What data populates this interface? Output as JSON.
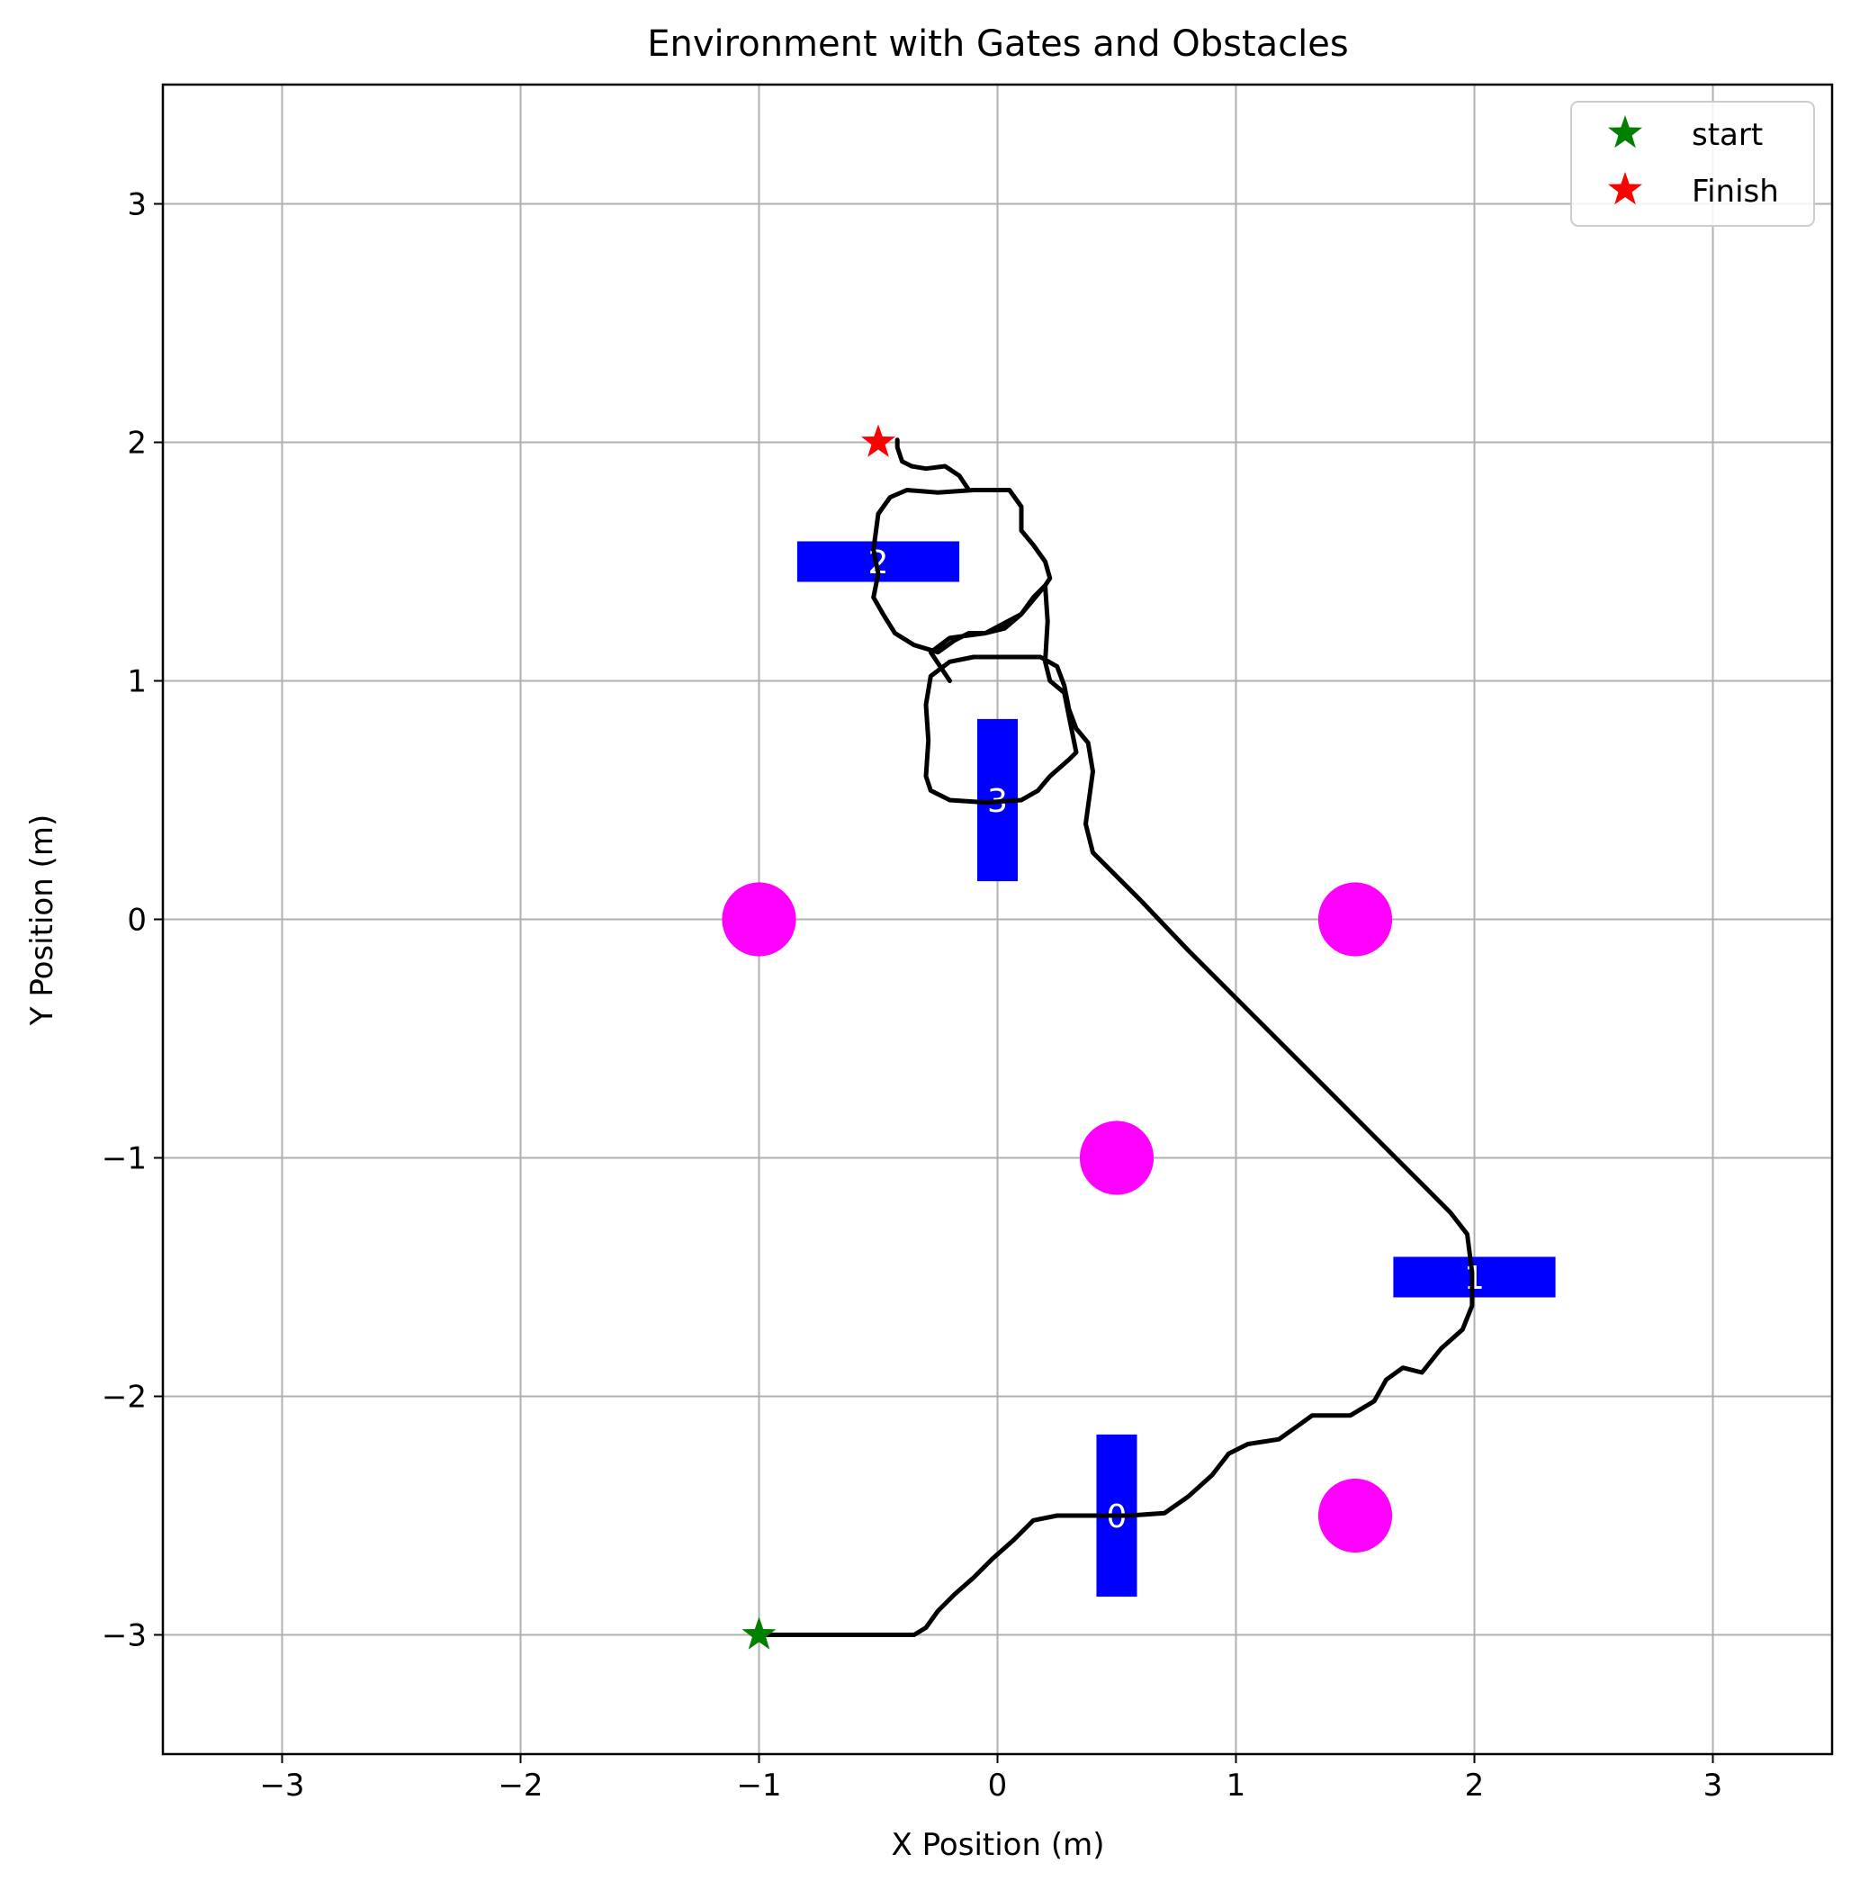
{
  "chart_data": {
    "type": "scatter",
    "title": "Environment with Gates and Obstacles",
    "xlabel": "X Position (m)",
    "ylabel": "Y Position (m)",
    "xlim": [
      -3.5,
      3.5
    ],
    "ylim": [
      -3.5,
      3.5
    ],
    "xticks": [
      -3,
      -2,
      -1,
      0,
      1,
      2,
      3
    ],
    "yticks": [
      -3,
      -2,
      -1,
      0,
      1,
      2,
      3
    ],
    "xtick_labels": [
      "−3",
      "−2",
      "−1",
      "0",
      "1",
      "2",
      "3"
    ],
    "ytick_labels": [
      "−3",
      "−2",
      "−1",
      "0",
      "1",
      "2",
      "3"
    ],
    "grid": true,
    "legend": {
      "placement": "upper right",
      "entries": [
        {
          "label": "start",
          "color": "#008000",
          "marker": "star"
        },
        {
          "label": "Finish",
          "color": "#ff0000",
          "marker": "star"
        }
      ]
    },
    "start": {
      "x": -1.0,
      "y": -3.0
    },
    "finish": {
      "x": -0.5,
      "y": 2.0
    },
    "gates": [
      {
        "label": "0",
        "x": 0.5,
        "y": -2.5,
        "orientation": "vertical"
      },
      {
        "label": "1",
        "x": 2.0,
        "y": -1.5,
        "orientation": "horizontal"
      },
      {
        "label": "2",
        "x": -0.5,
        "y": 1.5,
        "orientation": "horizontal"
      },
      {
        "label": "3",
        "x": 0.0,
        "y": 0.5,
        "orientation": "vertical"
      }
    ],
    "gate_color": "#0000ff",
    "gate_label_color": "#ffffff",
    "obstacles": [
      {
        "x": -1.0,
        "y": 0.0
      },
      {
        "x": 1.5,
        "y": 0.0
      },
      {
        "x": 0.5,
        "y": -1.0
      },
      {
        "x": 1.5,
        "y": -2.5
      }
    ],
    "obstacle_color": "#ff00ff",
    "trajectory_color": "#000000",
    "trajectory": [
      [
        -1.0,
        -3.0
      ],
      [
        -0.6,
        -3.0
      ],
      [
        -0.45,
        -3.0
      ],
      [
        -0.35,
        -3.0
      ],
      [
        -0.3,
        -2.97
      ],
      [
        -0.25,
        -2.9
      ],
      [
        -0.18,
        -2.83
      ],
      [
        -0.1,
        -2.76
      ],
      [
        -0.02,
        -2.68
      ],
      [
        0.07,
        -2.6
      ],
      [
        0.15,
        -2.52
      ],
      [
        0.25,
        -2.5
      ],
      [
        0.4,
        -2.5
      ],
      [
        0.55,
        -2.5
      ],
      [
        0.7,
        -2.49
      ],
      [
        0.8,
        -2.42
      ],
      [
        0.9,
        -2.33
      ],
      [
        0.97,
        -2.24
      ],
      [
        1.05,
        -2.2
      ],
      [
        1.18,
        -2.18
      ],
      [
        1.25,
        -2.13
      ],
      [
        1.32,
        -2.08
      ],
      [
        1.48,
        -2.08
      ],
      [
        1.58,
        -2.02
      ],
      [
        1.63,
        -1.93
      ],
      [
        1.7,
        -1.88
      ],
      [
        1.78,
        -1.9
      ],
      [
        1.86,
        -1.8
      ],
      [
        1.95,
        -1.72
      ],
      [
        1.99,
        -1.62
      ],
      [
        1.99,
        -1.48
      ],
      [
        1.97,
        -1.32
      ],
      [
        1.9,
        -1.23
      ],
      [
        1.8,
        -1.13
      ],
      [
        1.6,
        -0.93
      ],
      [
        1.4,
        -0.73
      ],
      [
        1.2,
        -0.53
      ],
      [
        1.0,
        -0.33
      ],
      [
        0.8,
        -0.13
      ],
      [
        0.6,
        0.08
      ],
      [
        0.5,
        0.18
      ],
      [
        0.4,
        0.28
      ],
      [
        0.37,
        0.4
      ],
      [
        0.4,
        0.62
      ],
      [
        0.38,
        0.74
      ],
      [
        0.33,
        0.8
      ],
      [
        0.3,
        0.88
      ],
      [
        0.28,
        0.98
      ],
      [
        0.25,
        1.06
      ],
      [
        0.18,
        1.1
      ],
      [
        0.0,
        1.1
      ],
      [
        -0.1,
        1.1
      ],
      [
        -0.2,
        1.08
      ],
      [
        -0.28,
        1.02
      ],
      [
        -0.3,
        0.9
      ],
      [
        -0.29,
        0.75
      ],
      [
        -0.3,
        0.6
      ],
      [
        -0.28,
        0.54
      ],
      [
        -0.2,
        0.5
      ],
      [
        -0.05,
        0.49
      ],
      [
        0.1,
        0.5
      ],
      [
        0.17,
        0.54
      ],
      [
        0.22,
        0.6
      ],
      [
        0.3,
        0.67
      ],
      [
        0.33,
        0.7
      ],
      [
        0.3,
        0.85
      ],
      [
        0.28,
        0.95
      ],
      [
        0.22,
        1.0
      ],
      [
        0.2,
        1.08
      ],
      [
        0.21,
        1.25
      ],
      [
        0.2,
        1.4
      ],
      [
        0.15,
        1.35
      ],
      [
        0.1,
        1.28
      ],
      [
        0.03,
        1.22
      ],
      [
        -0.05,
        1.2
      ],
      [
        -0.12,
        1.2
      ],
      [
        -0.18,
        1.17
      ],
      [
        -0.25,
        1.12
      ],
      [
        -0.35,
        1.15
      ],
      [
        -0.43,
        1.2
      ],
      [
        -0.48,
        1.28
      ],
      [
        -0.52,
        1.35
      ],
      [
        -0.5,
        1.45
      ],
      [
        -0.52,
        1.55
      ],
      [
        -0.5,
        1.7
      ],
      [
        -0.45,
        1.77
      ],
      [
        -0.38,
        1.8
      ],
      [
        -0.25,
        1.79
      ],
      [
        -0.1,
        1.8
      ],
      [
        0.05,
        1.8
      ],
      [
        0.1,
        1.73
      ],
      [
        0.1,
        1.63
      ],
      [
        0.15,
        1.57
      ],
      [
        0.2,
        1.5
      ],
      [
        0.22,
        1.43
      ],
      [
        0.2,
        1.4
      ],
      [
        0.1,
        1.28
      ],
      [
        -0.05,
        1.2
      ],
      [
        -0.2,
        1.18
      ],
      [
        -0.28,
        1.12
      ],
      [
        -0.2,
        1.0
      ]
    ],
    "finish_path": [
      [
        -0.12,
        1.8
      ],
      [
        -0.16,
        1.86
      ],
      [
        -0.22,
        1.9
      ],
      [
        -0.3,
        1.89
      ],
      [
        -0.36,
        1.9
      ],
      [
        -0.4,
        1.92
      ],
      [
        -0.42,
        1.98
      ],
      [
        -0.42,
        2.01
      ]
    ]
  }
}
